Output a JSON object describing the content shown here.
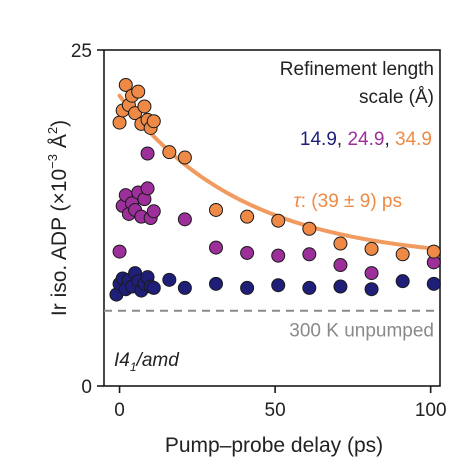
{
  "chart_data": {
    "type": "scatter",
    "xlabel": "Pump–probe delay (ps)",
    "ylabel": "Ir iso. ADP (×10⁻³ Å²)",
    "ylabel_parts": {
      "prefix": "Ir iso. ADP (",
      "times": "×",
      "base": "10",
      "exp": "−3",
      "unit": " Å",
      "unit_exp": "2",
      "suffix": ")"
    },
    "xlim": [
      -5,
      103
    ],
    "ylim": [
      0,
      25
    ],
    "xticks": [
      0,
      50,
      100
    ],
    "yticks": [
      0,
      25
    ],
    "grid": false,
    "legend": {
      "title_line1": "Refinement length",
      "title_line2": "scale (Å)",
      "placement": "top-right"
    },
    "series": [
      {
        "name": "14.9",
        "color": "#1f1f7a",
        "points": [
          [
            -1,
            6.8
          ],
          [
            0,
            7.6
          ],
          [
            1,
            8.0
          ],
          [
            2,
            7.2
          ],
          [
            3,
            7.9
          ],
          [
            4,
            7.4
          ],
          [
            5,
            8.4
          ],
          [
            6,
            7.8
          ],
          [
            7,
            7.1
          ],
          [
            8,
            7.6
          ],
          [
            9,
            8.1
          ],
          [
            10,
            7.4
          ],
          [
            11,
            7.3
          ],
          [
            16,
            7.9
          ],
          [
            21,
            7.3
          ],
          [
            31,
            7.6
          ],
          [
            41,
            7.3
          ],
          [
            51,
            7.5
          ],
          [
            61,
            7.3
          ],
          [
            71,
            7.4
          ],
          [
            81,
            7.2
          ],
          [
            91,
            7.8
          ],
          [
            101,
            7.6
          ]
        ]
      },
      {
        "name": "24.9",
        "color": "#9c2f9a",
        "points": [
          [
            0,
            10.0
          ],
          [
            1,
            13.4
          ],
          [
            2,
            14.2
          ],
          [
            3,
            12.8
          ],
          [
            4,
            13.6
          ],
          [
            5,
            13.1
          ],
          [
            6,
            14.4
          ],
          [
            7,
            12.6
          ],
          [
            8,
            13.9
          ],
          [
            9,
            14.7
          ],
          [
            10,
            12.5
          ],
          [
            11,
            13.0
          ],
          [
            9,
            17.3
          ],
          [
            21,
            12.4
          ],
          [
            31,
            10.3
          ],
          [
            41,
            9.9
          ],
          [
            51,
            9.7
          ],
          [
            61,
            9.8
          ],
          [
            71,
            9.0
          ],
          [
            81,
            8.4
          ],
          [
            101,
            9.2
          ]
        ]
      },
      {
        "name": "34.9",
        "color": "#ee8a45",
        "points": [
          [
            0,
            19.6
          ],
          [
            1,
            20.5
          ],
          [
            2,
            22.4
          ],
          [
            3,
            20.9
          ],
          [
            4,
            21.6
          ],
          [
            5,
            20.3
          ],
          [
            6,
            21.9
          ],
          [
            7,
            19.5
          ],
          [
            8,
            20.8
          ],
          [
            9,
            19.8
          ],
          [
            10,
            19.2
          ],
          [
            11,
            19.7
          ],
          [
            16,
            17.4
          ],
          [
            21,
            17.0
          ],
          [
            31,
            13.1
          ],
          [
            41,
            12.6
          ],
          [
            51,
            12.3
          ],
          [
            61,
            11.7
          ],
          [
            71,
            10.6
          ],
          [
            81,
            10.2
          ],
          [
            91,
            9.8
          ],
          [
            101,
            10.0
          ]
        ]
      }
    ],
    "fit": {
      "color": "#ee8a45",
      "label_symbol": "τ",
      "label_value": ": (39 ± 9) ps",
      "tau": 39,
      "offset": 9.3,
      "amplitude": 12.3,
      "x_start": 0,
      "x_end": 101
    },
    "baseline": {
      "y": 5.6,
      "color": "#8a8a8a",
      "label": "300 K unpumped"
    },
    "space_group": {
      "base": "I4",
      "sub": "1",
      "suffix": "/amd"
    }
  }
}
